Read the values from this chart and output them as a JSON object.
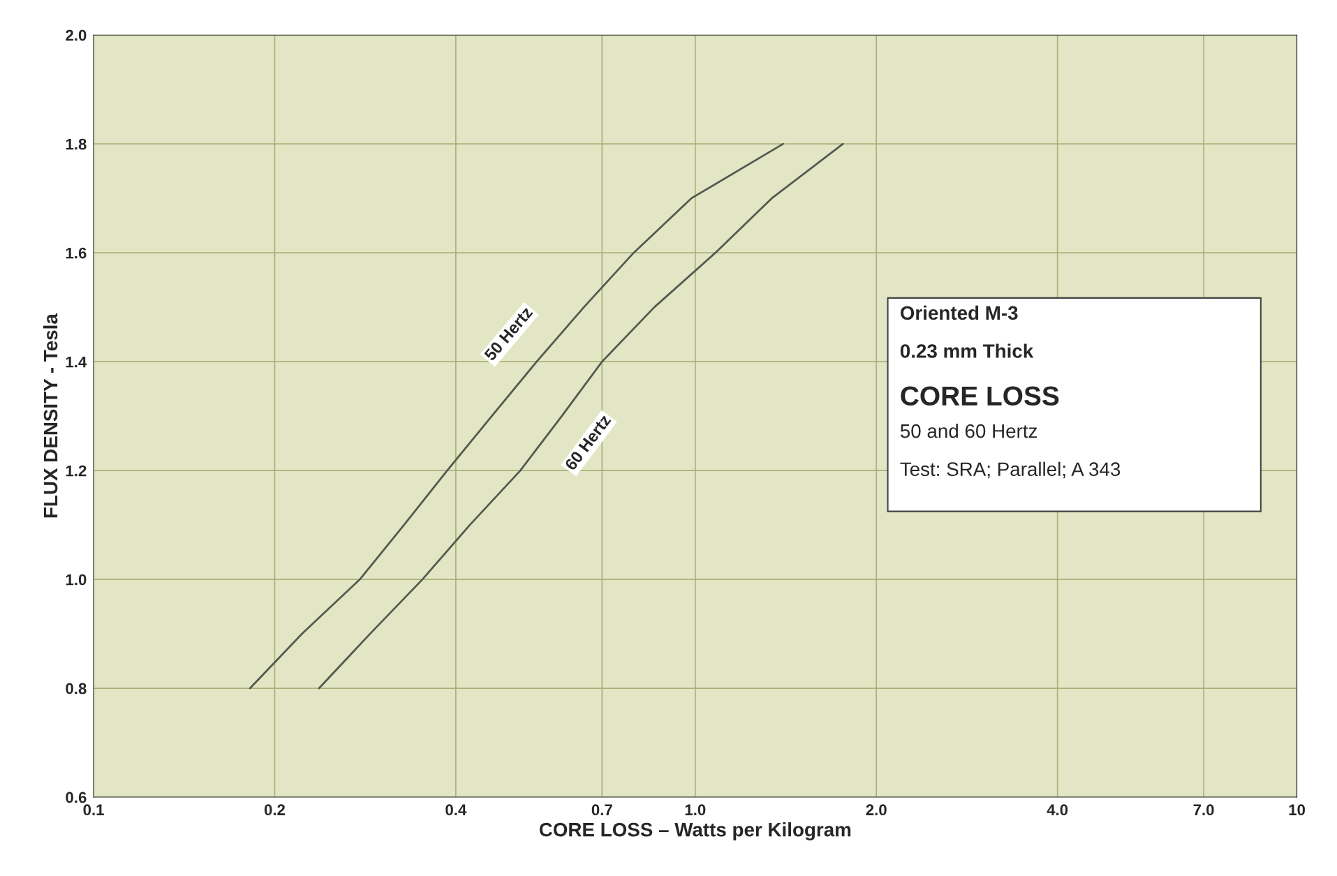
{
  "chart_data": {
    "type": "line",
    "xlabel": "CORE LOSS – Watts per Kilogram",
    "ylabel": "FLUX DENSITY - Tesla",
    "log": "x",
    "grid": true,
    "marker": "none",
    "line_style": "solid",
    "xlim": [
      0.1,
      10
    ],
    "xticks": [
      0.1,
      0.2,
      0.4,
      0.7,
      {
        "value": 1,
        "label": "1.0"
      },
      {
        "value": 2,
        "label": "2.0"
      },
      {
        "value": 4,
        "label": "4.0"
      },
      {
        "value": 7,
        "label": "7.0"
      },
      10
    ],
    "ylim": [
      0.6,
      2.0
    ],
    "yticks": [
      0.6,
      0.8,
      {
        "value": 1,
        "label": "1.0"
      },
      1.2,
      1.4,
      1.6,
      1.8,
      {
        "value": 2,
        "label": "2.0"
      }
    ],
    "series": [
      {
        "name": "50 Hertz",
        "color": "#555a50",
        "x": [
          0.182,
          0.222,
          0.277,
          0.328,
          0.387,
          0.459,
          0.545,
          0.653,
          0.79,
          0.985,
          1.4
        ],
        "values": [
          0.8,
          0.9,
          1.0,
          1.1,
          1.2,
          1.3,
          1.4,
          1.5,
          1.6,
          1.7,
          1.8
        ]
      },
      {
        "name": "60 Hertz",
        "color": "#555a50",
        "x": [
          0.237,
          0.288,
          0.352,
          0.422,
          0.512,
          0.6,
          0.7,
          0.855,
          1.08,
          1.34,
          1.76
        ],
        "values": [
          0.8,
          0.9,
          1.0,
          1.1,
          1.2,
          1.3,
          1.4,
          1.5,
          1.6,
          1.7,
          1.8
        ]
      }
    ],
    "annotations": [
      "Oriented M-3",
      "0.23 mm Thick",
      "CORE LOSS",
      "50 and 60 Hertz",
      "Test: SRA; Parallel; A 343"
    ]
  }
}
